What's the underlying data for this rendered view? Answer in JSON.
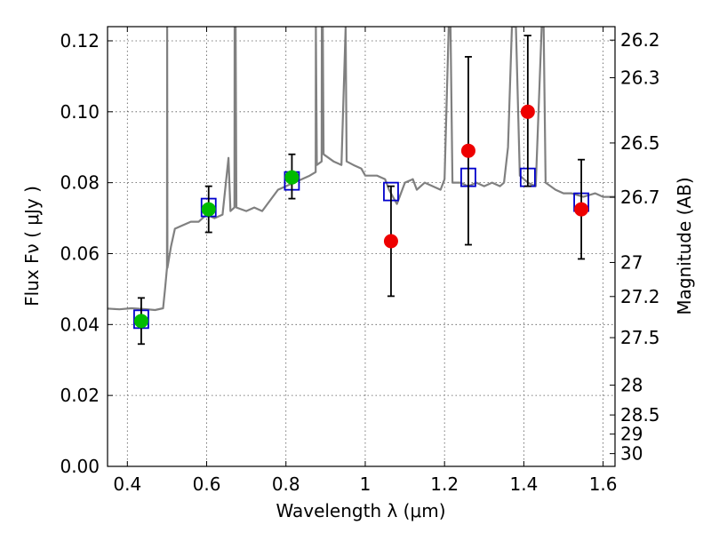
{
  "chart_data": {
    "type": "scatter",
    "xlabel": "Wavelength  λ (μm)",
    "ylabel_left": "Flux  Fν  ( μJy )",
    "ylabel_right": "Magnitude (AB)",
    "xlim": [
      0.35,
      1.63
    ],
    "ylim": [
      0.0,
      0.124
    ],
    "grid": true,
    "x_ticks": [
      0.4,
      0.6,
      0.8,
      1.0,
      1.2,
      1.4,
      1.6
    ],
    "x_tick_labels": [
      "0.4",
      "0.6",
      "0.8",
      "1",
      "1.2",
      "1.4",
      "1.6"
    ],
    "y_ticks": [
      0.0,
      0.02,
      0.04,
      0.06,
      0.08,
      0.1,
      0.12
    ],
    "y_tick_labels": [
      "0.00",
      "0.02",
      "0.04",
      "0.06",
      "0.08",
      "0.10",
      "0.12"
    ],
    "right_ticks": [
      {
        "label": "26.2",
        "flux": 0.1202
      },
      {
        "label": "26.3",
        "flux": 0.1096
      },
      {
        "label": "26.5",
        "flux": 0.0912
      },
      {
        "label": "26.7",
        "flux": 0.0759
      },
      {
        "label": "27",
        "flux": 0.0575
      },
      {
        "label": "27.2",
        "flux": 0.0479
      },
      {
        "label": "27.5",
        "flux": 0.0363
      },
      {
        "label": "28",
        "flux": 0.0229
      },
      {
        "label": "28.5",
        "flux": 0.0145
      },
      {
        "label": "29",
        "flux": 0.0091
      },
      {
        "label": "30",
        "flux": 0.0036
      }
    ],
    "series": [
      {
        "kind": "line",
        "color": "#808080",
        "points": [
          [
            0.35,
            0.0445
          ],
          [
            0.38,
            0.0443
          ],
          [
            0.41,
            0.0446
          ],
          [
            0.44,
            0.0444
          ],
          [
            0.47,
            0.0441
          ],
          [
            0.49,
            0.0446
          ],
          [
            0.495,
            0.05
          ],
          [
            0.5,
            0.056
          ],
          [
            0.5005,
            0.124
          ],
          [
            0.501,
            0.056
          ],
          [
            0.51,
            0.062
          ],
          [
            0.52,
            0.067
          ],
          [
            0.54,
            0.068
          ],
          [
            0.56,
            0.069
          ],
          [
            0.58,
            0.069
          ],
          [
            0.6,
            0.071
          ],
          [
            0.62,
            0.07
          ],
          [
            0.64,
            0.071
          ],
          [
            0.655,
            0.087
          ],
          [
            0.66,
            0.072
          ],
          [
            0.67,
            0.073
          ],
          [
            0.6705,
            0.124
          ],
          [
            0.673,
            0.124
          ],
          [
            0.675,
            0.073
          ],
          [
            0.7,
            0.072
          ],
          [
            0.72,
            0.073
          ],
          [
            0.74,
            0.072
          ],
          [
            0.76,
            0.075
          ],
          [
            0.78,
            0.078
          ],
          [
            0.8,
            0.079
          ],
          [
            0.82,
            0.08
          ],
          [
            0.84,
            0.081
          ],
          [
            0.86,
            0.082
          ],
          [
            0.875,
            0.083
          ],
          [
            0.8755,
            0.124
          ],
          [
            0.878,
            0.085
          ],
          [
            0.89,
            0.086
          ],
          [
            0.8905,
            0.124
          ],
          [
            0.893,
            0.124
          ],
          [
            0.895,
            0.088
          ],
          [
            0.92,
            0.086
          ],
          [
            0.94,
            0.085
          ],
          [
            0.9505,
            0.124
          ],
          [
            0.953,
            0.086
          ],
          [
            0.97,
            0.085
          ],
          [
            0.99,
            0.084
          ],
          [
            1.0,
            0.082
          ],
          [
            1.01,
            0.082
          ],
          [
            1.03,
            0.082
          ],
          [
            1.05,
            0.081
          ],
          [
            1.06,
            0.078
          ],
          [
            1.08,
            0.074
          ],
          [
            1.1,
            0.08
          ],
          [
            1.12,
            0.081
          ],
          [
            1.13,
            0.078
          ],
          [
            1.15,
            0.08
          ],
          [
            1.17,
            0.079
          ],
          [
            1.19,
            0.078
          ],
          [
            1.2,
            0.081
          ],
          [
            1.2105,
            0.124
          ],
          [
            1.215,
            0.124
          ],
          [
            1.22,
            0.08
          ],
          [
            1.24,
            0.08
          ],
          [
            1.26,
            0.079
          ],
          [
            1.28,
            0.08
          ],
          [
            1.3,
            0.079
          ],
          [
            1.32,
            0.08
          ],
          [
            1.34,
            0.079
          ],
          [
            1.35,
            0.08
          ],
          [
            1.36,
            0.09
          ],
          [
            1.37,
            0.124
          ],
          [
            1.38,
            0.124
          ],
          [
            1.39,
            0.082
          ],
          [
            1.41,
            0.08
          ],
          [
            1.43,
            0.079
          ],
          [
            1.445,
            0.124
          ],
          [
            1.45,
            0.124
          ],
          [
            1.455,
            0.08
          ],
          [
            1.48,
            0.078
          ],
          [
            1.5,
            0.077
          ],
          [
            1.52,
            0.077
          ],
          [
            1.55,
            0.076
          ],
          [
            1.58,
            0.077
          ],
          [
            1.6,
            0.076
          ],
          [
            1.63,
            0.076
          ]
        ]
      },
      {
        "kind": "squares",
        "color": "#0000cc",
        "points": [
          [
            0.435,
            0.0415
          ],
          [
            0.605,
            0.073
          ],
          [
            0.815,
            0.0805
          ],
          [
            1.065,
            0.0775
          ],
          [
            1.26,
            0.0815
          ],
          [
            1.41,
            0.0815
          ],
          [
            1.545,
            0.0745
          ]
        ]
      },
      {
        "kind": "circles",
        "color": "#00bb00",
        "points": [
          {
            "x": 0.435,
            "y": 0.041,
            "lo": 0.0345,
            "hi": 0.0475
          },
          {
            "x": 0.605,
            "y": 0.0725,
            "lo": 0.066,
            "hi": 0.079
          },
          {
            "x": 0.815,
            "y": 0.0815,
            "lo": 0.0755,
            "hi": 0.088
          }
        ]
      },
      {
        "kind": "circles",
        "color": "#ee0000",
        "points": [
          {
            "x": 1.065,
            "y": 0.0635,
            "lo": 0.048,
            "hi": 0.079
          },
          {
            "x": 1.26,
            "y": 0.089,
            "lo": 0.0625,
            "hi": 0.1155
          },
          {
            "x": 1.41,
            "y": 0.1,
            "lo": 0.079,
            "hi": 0.1215
          },
          {
            "x": 1.545,
            "y": 0.0725,
            "lo": 0.0585,
            "hi": 0.0865
          }
        ]
      }
    ]
  }
}
